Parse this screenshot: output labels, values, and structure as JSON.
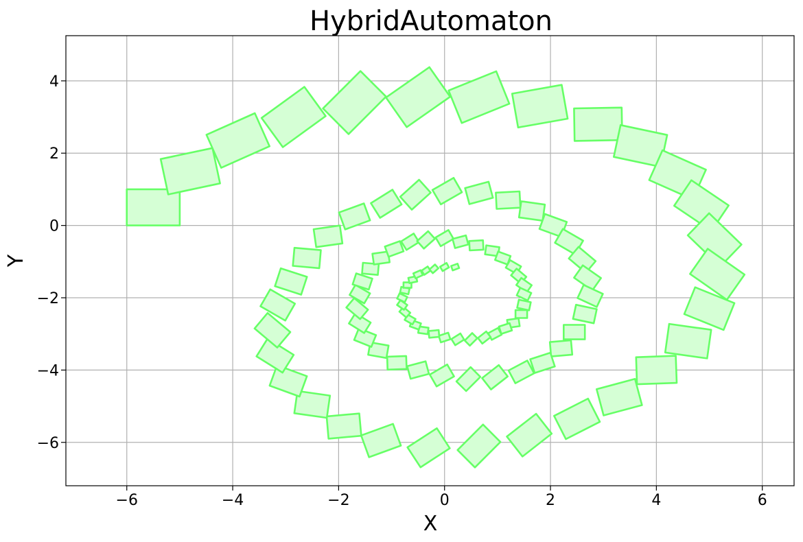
{
  "chart_data": {
    "type": "scatter",
    "title": "HybridAutomaton",
    "xlabel": "X",
    "ylabel": "Y",
    "xlim": [
      -7.15,
      6.6
    ],
    "ylim": [
      -7.2,
      5.25
    ],
    "xticks": [
      -6,
      -4,
      -2,
      0,
      2,
      4,
      6
    ],
    "yticks": [
      -6,
      -4,
      -2,
      0,
      2,
      4
    ],
    "xtick_labels": [
      "−6",
      "−4",
      "−2",
      "0",
      "2",
      "4",
      "6"
    ],
    "ytick_labels": [
      "−6",
      "−4",
      "−2",
      "0",
      "2",
      "4"
    ],
    "grid": true,
    "colors": {
      "edge": "#66ff66",
      "fill": "#d5ffd5"
    },
    "series": [
      {
        "values": [
          {
            "x": -5.5,
            "y": 0.5,
            "s": 1.0,
            "a": 0
          },
          {
            "x": -4.8,
            "y": 1.5,
            "s": 1.0,
            "a": 12
          },
          {
            "x": -3.9,
            "y": 2.35,
            "s": 1.0,
            "a": 24
          },
          {
            "x": -2.85,
            "y": 3.0,
            "s": 1.0,
            "a": 36
          },
          {
            "x": -1.7,
            "y": 3.4,
            "s": 1.0,
            "a": 45
          },
          {
            "x": -0.5,
            "y": 3.55,
            "s": 1.0,
            "a": 35
          },
          {
            "x": 0.65,
            "y": 3.55,
            "s": 0.97,
            "a": 22
          },
          {
            "x": 1.8,
            "y": 3.3,
            "s": 0.95,
            "a": 10
          },
          {
            "x": 2.9,
            "y": 2.8,
            "s": 0.9,
            "a": 1
          },
          {
            "x": 3.7,
            "y": 2.2,
            "s": 0.9,
            "a": -12
          },
          {
            "x": 4.4,
            "y": 1.4,
            "s": 0.9,
            "a": -24
          },
          {
            "x": 4.85,
            "y": 0.55,
            "s": 0.85,
            "a": -34
          },
          {
            "x": 5.1,
            "y": -0.4,
            "s": 0.85,
            "a": -44
          },
          {
            "x": 5.15,
            "y": -1.35,
            "s": 0.85,
            "a": -35
          },
          {
            "x": 5.0,
            "y": -2.3,
            "s": 0.8,
            "a": -22
          },
          {
            "x": 4.6,
            "y": -3.2,
            "s": 0.8,
            "a": -8
          },
          {
            "x": 4.0,
            "y": -4.0,
            "s": 0.75,
            "a": 2
          },
          {
            "x": 3.3,
            "y": -4.75,
            "s": 0.75,
            "a": 15
          },
          {
            "x": 2.5,
            "y": -5.35,
            "s": 0.72,
            "a": 27
          },
          {
            "x": 1.6,
            "y": -5.8,
            "s": 0.7,
            "a": 38
          },
          {
            "x": 0.65,
            "y": -6.1,
            "s": 0.68,
            "a": 45
          },
          {
            "x": -0.3,
            "y": -6.15,
            "s": 0.66,
            "a": 33
          },
          {
            "x": -1.2,
            "y": -5.95,
            "s": 0.64,
            "a": 20
          },
          {
            "x": -1.9,
            "y": -5.55,
            "s": 0.62,
            "a": 5
          },
          {
            "x": -2.5,
            "y": -4.95,
            "s": 0.62,
            "a": -8
          },
          {
            "x": -2.95,
            "y": -4.3,
            "s": 0.6,
            "a": -20
          },
          {
            "x": -3.2,
            "y": -3.6,
            "s": 0.58,
            "a": -32
          },
          {
            "x": -3.25,
            "y": -2.9,
            "s": 0.56,
            "a": -40
          },
          {
            "x": -3.15,
            "y": -2.2,
            "s": 0.54,
            "a": -30
          },
          {
            "x": -2.9,
            "y": -1.55,
            "s": 0.52,
            "a": -18
          },
          {
            "x": -2.6,
            "y": -0.9,
            "s": 0.5,
            "a": -5
          },
          {
            "x": -2.2,
            "y": -0.3,
            "s": 0.5,
            "a": 8
          },
          {
            "x": -1.7,
            "y": 0.25,
            "s": 0.5,
            "a": 20
          },
          {
            "x": -1.1,
            "y": 0.6,
            "s": 0.48,
            "a": 32
          },
          {
            "x": -0.55,
            "y": 0.85,
            "s": 0.48,
            "a": 42
          },
          {
            "x": 0.05,
            "y": 0.95,
            "s": 0.46,
            "a": 30
          },
          {
            "x": 0.65,
            "y": 0.9,
            "s": 0.46,
            "a": 15
          },
          {
            "x": 1.2,
            "y": 0.7,
            "s": 0.45,
            "a": 3
          },
          {
            "x": 1.65,
            "y": 0.4,
            "s": 0.45,
            "a": -8
          },
          {
            "x": 2.05,
            "y": 0.0,
            "s": 0.44,
            "a": -20
          },
          {
            "x": 2.35,
            "y": -0.45,
            "s": 0.44,
            "a": -30
          },
          {
            "x": 2.6,
            "y": -0.95,
            "s": 0.42,
            "a": -40
          },
          {
            "x": 2.7,
            "y": -1.45,
            "s": 0.42,
            "a": -35
          },
          {
            "x": 2.75,
            "y": -1.95,
            "s": 0.4,
            "a": -25
          },
          {
            "x": 2.65,
            "y": -2.45,
            "s": 0.4,
            "a": -12
          },
          {
            "x": 2.45,
            "y": -2.95,
            "s": 0.4,
            "a": 0
          },
          {
            "x": 2.2,
            "y": -3.4,
            "s": 0.4,
            "a": 5
          },
          {
            "x": 1.85,
            "y": -3.8,
            "s": 0.4,
            "a": 18
          },
          {
            "x": 1.45,
            "y": -4.05,
            "s": 0.4,
            "a": 28
          },
          {
            "x": 0.95,
            "y": -4.2,
            "s": 0.4,
            "a": 38
          },
          {
            "x": 0.45,
            "y": -4.25,
            "s": 0.38,
            "a": 45
          },
          {
            "x": -0.05,
            "y": -4.15,
            "s": 0.38,
            "a": 30
          },
          {
            "x": -0.5,
            "y": -4.0,
            "s": 0.36,
            "a": 15
          },
          {
            "x": -0.9,
            "y": -3.8,
            "s": 0.36,
            "a": 2
          },
          {
            "x": -1.25,
            "y": -3.45,
            "s": 0.35,
            "a": -10
          },
          {
            "x": -1.5,
            "y": -3.1,
            "s": 0.35,
            "a": -22
          },
          {
            "x": -1.6,
            "y": -2.7,
            "s": 0.34,
            "a": -32
          },
          {
            "x": -1.65,
            "y": -2.3,
            "s": 0.34,
            "a": -40
          },
          {
            "x": -1.6,
            "y": -1.9,
            "s": 0.32,
            "a": -30
          },
          {
            "x": -1.55,
            "y": -1.55,
            "s": 0.32,
            "a": -18
          },
          {
            "x": -1.4,
            "y": -1.2,
            "s": 0.3,
            "a": -5
          },
          {
            "x": -1.2,
            "y": -0.9,
            "s": 0.3,
            "a": 8
          },
          {
            "x": -0.95,
            "y": -0.65,
            "s": 0.3,
            "a": 20
          },
          {
            "x": -0.65,
            "y": -0.45,
            "s": 0.28,
            "a": 32
          },
          {
            "x": -0.35,
            "y": -0.4,
            "s": 0.28,
            "a": 42
          },
          {
            "x": 0.0,
            "y": -0.35,
            "s": 0.28,
            "a": 30
          },
          {
            "x": 0.3,
            "y": -0.45,
            "s": 0.26,
            "a": 15
          },
          {
            "x": 0.6,
            "y": -0.55,
            "s": 0.26,
            "a": 3
          },
          {
            "x": 0.9,
            "y": -0.7,
            "s": 0.25,
            "a": -8
          },
          {
            "x": 1.1,
            "y": -0.9,
            "s": 0.25,
            "a": -20
          },
          {
            "x": 1.3,
            "y": -1.15,
            "s": 0.24,
            "a": -30
          },
          {
            "x": 1.4,
            "y": -1.4,
            "s": 0.24,
            "a": -40
          },
          {
            "x": 1.5,
            "y": -1.65,
            "s": 0.24,
            "a": -35
          },
          {
            "x": 1.5,
            "y": -1.9,
            "s": 0.23,
            "a": -25
          },
          {
            "x": 1.5,
            "y": -2.2,
            "s": 0.23,
            "a": -12
          },
          {
            "x": 1.45,
            "y": -2.45,
            "s": 0.22,
            "a": 0
          },
          {
            "x": 1.3,
            "y": -2.7,
            "s": 0.22,
            "a": 8
          },
          {
            "x": 1.15,
            "y": -2.85,
            "s": 0.21,
            "a": 18
          },
          {
            "x": 0.95,
            "y": -3.0,
            "s": 0.21,
            "a": 28
          },
          {
            "x": 0.75,
            "y": -3.1,
            "s": 0.2,
            "a": 38
          },
          {
            "x": 0.5,
            "y": -3.15,
            "s": 0.2,
            "a": 45
          },
          {
            "x": 0.25,
            "y": -3.15,
            "s": 0.2,
            "a": 32
          },
          {
            "x": 0.0,
            "y": -3.1,
            "s": 0.19,
            "a": 18
          },
          {
            "x": -0.2,
            "y": -3.0,
            "s": 0.19,
            "a": 5
          },
          {
            "x": -0.4,
            "y": -2.9,
            "s": 0.18,
            "a": -8
          },
          {
            "x": -0.55,
            "y": -2.75,
            "s": 0.18,
            "a": -20
          },
          {
            "x": -0.65,
            "y": -2.6,
            "s": 0.17,
            "a": -30
          },
          {
            "x": -0.75,
            "y": -2.4,
            "s": 0.17,
            "a": -40
          },
          {
            "x": -0.8,
            "y": -2.2,
            "s": 0.16,
            "a": -35
          },
          {
            "x": -0.8,
            "y": -2.0,
            "s": 0.16,
            "a": -25
          },
          {
            "x": -0.75,
            "y": -1.8,
            "s": 0.16,
            "a": -12
          },
          {
            "x": -0.7,
            "y": -1.65,
            "s": 0.15,
            "a": 0
          },
          {
            "x": -0.6,
            "y": -1.5,
            "s": 0.15,
            "a": 12
          },
          {
            "x": -0.5,
            "y": -1.35,
            "s": 0.15,
            "a": 24
          },
          {
            "x": -0.35,
            "y": -1.25,
            "s": 0.14,
            "a": 34
          },
          {
            "x": -0.2,
            "y": -1.2,
            "s": 0.14,
            "a": 42
          },
          {
            "x": 0.0,
            "y": -1.15,
            "s": 0.14,
            "a": 30
          },
          {
            "x": 0.2,
            "y": -1.15,
            "s": 0.13,
            "a": 20
          }
        ]
      }
    ]
  }
}
